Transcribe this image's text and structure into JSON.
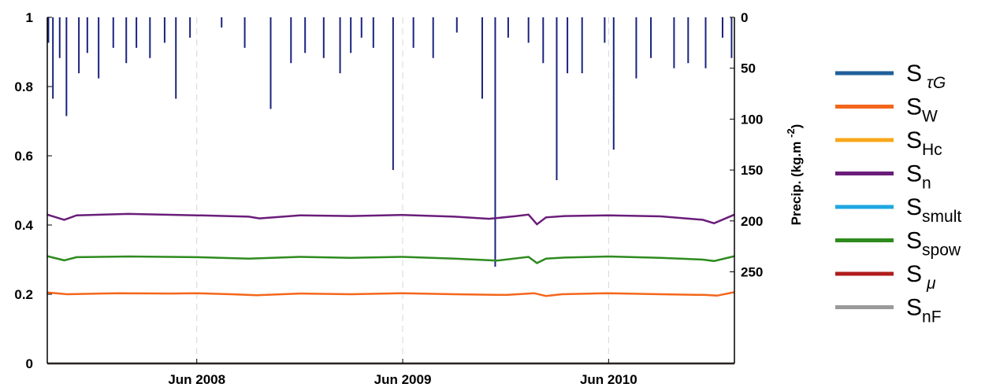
{
  "chart_data": {
    "type": "line",
    "title": "",
    "xlabel": "",
    "ylabel": "",
    "ylabel_right": "Precip. (kg.m -2)",
    "ylabel_right_main": "Precip. (kg.m",
    "ylabel_right_sup": "-2",
    "ylabel_right_close": ")",
    "x_range": [
      "2007-09-10",
      "2011-01-10"
    ],
    "x_tick_dates": [
      "2008-06-01",
      "2009-06-01",
      "2010-06-01"
    ],
    "x_tick_labels": [
      "Jun 2008",
      "Jun 2009",
      "Jun 2010"
    ],
    "ylim": [
      0,
      1
    ],
    "y_ticks": [
      0,
      0.2,
      0.4,
      0.6,
      0.8,
      1
    ],
    "y_tick_labels": [
      "0",
      "0.2",
      "0.4",
      "0.6",
      "0.8",
      "1"
    ],
    "ylim_right_inverted": [
      0,
      340
    ],
    "y_right_ticks": [
      0,
      50,
      100,
      150,
      200,
      250
    ],
    "y_right_tick_labels": [
      "0",
      "50",
      "100",
      "150",
      "200",
      "250"
    ],
    "grid": "vertical dashed at x ticks",
    "legend_position": "right",
    "series": [
      {
        "name": "S τG",
        "main": "S",
        "sub": "τG",
        "sub_italic": true,
        "color": "#1f5f9a",
        "x": [
          "2007-09-10",
          "2011-01-10"
        ],
        "y": [
          0.0,
          0.0
        ]
      },
      {
        "name": "SW",
        "main": "S",
        "sub": "W",
        "sub_italic": false,
        "color": "#f4661b",
        "x": [
          "2007-09-10",
          "2007-10-15",
          "2008-01-15",
          "2008-04-15",
          "2008-06-01",
          "2008-08-01",
          "2008-09-15",
          "2008-12-01",
          "2009-03-01",
          "2009-06-01",
          "2009-09-01",
          "2009-12-01",
          "2010-01-20",
          "2010-02-10",
          "2010-03-10",
          "2010-06-01",
          "2010-09-01",
          "2010-11-20",
          "2010-12-10",
          "2011-01-10"
        ],
        "y": [
          0.205,
          0.2,
          0.203,
          0.202,
          0.203,
          0.2,
          0.197,
          0.202,
          0.2,
          0.203,
          0.2,
          0.198,
          0.203,
          0.195,
          0.2,
          0.203,
          0.2,
          0.198,
          0.196,
          0.206
        ]
      },
      {
        "name": "SHc",
        "main": "S",
        "sub": "Hc",
        "sub_italic": false,
        "color": "#f8a71b",
        "x": [
          "2007-09-10",
          "2011-01-10"
        ],
        "y": [
          0.0,
          0.0
        ]
      },
      {
        "name": "Sn",
        "main": "S",
        "sub": "n",
        "sub_italic": false,
        "color": "#6a1d7a",
        "x": [
          "2007-09-10",
          "2007-10-10",
          "2007-11-01",
          "2008-02-01",
          "2008-06-01",
          "2008-09-01",
          "2008-09-20",
          "2008-12-01",
          "2009-03-01",
          "2009-06-01",
          "2009-09-01",
          "2009-11-01",
          "2009-12-15",
          "2010-01-10",
          "2010-01-25",
          "2010-02-10",
          "2010-03-15",
          "2010-06-01",
          "2010-09-01",
          "2010-11-15",
          "2010-12-05",
          "2011-01-10"
        ],
        "y": [
          0.43,
          0.415,
          0.428,
          0.432,
          0.428,
          0.424,
          0.419,
          0.428,
          0.426,
          0.429,
          0.424,
          0.418,
          0.425,
          0.43,
          0.402,
          0.422,
          0.426,
          0.428,
          0.425,
          0.415,
          0.405,
          0.43
        ]
      },
      {
        "name": "Ssmult",
        "main": "S",
        "sub": "smult",
        "sub_italic": false,
        "color": "#1fa7e0",
        "x": [
          "2007-09-10",
          "2011-01-10"
        ],
        "y": [
          0.0,
          0.0
        ]
      },
      {
        "name": "Sspow",
        "main": "S",
        "sub": "spow",
        "sub_italic": false,
        "color": "#2e8b1e",
        "x": [
          "2007-09-10",
          "2007-10-10",
          "2007-11-01",
          "2008-02-01",
          "2008-06-01",
          "2008-09-01",
          "2008-12-01",
          "2009-03-01",
          "2009-06-01",
          "2009-09-01",
          "2009-11-15",
          "2010-01-10",
          "2010-01-25",
          "2010-02-10",
          "2010-03-15",
          "2010-06-01",
          "2010-09-01",
          "2010-11-15",
          "2010-12-05",
          "2011-01-10"
        ],
        "y": [
          0.31,
          0.298,
          0.307,
          0.309,
          0.307,
          0.303,
          0.308,
          0.305,
          0.308,
          0.303,
          0.297,
          0.308,
          0.29,
          0.303,
          0.306,
          0.309,
          0.305,
          0.3,
          0.296,
          0.31
        ]
      },
      {
        "name": "S μ",
        "main": "S",
        "sub": "μ",
        "sub_italic": true,
        "color": "#b01c1c",
        "x": [
          "2007-09-10",
          "2011-01-10"
        ],
        "y": [
          0.0,
          0.0
        ]
      },
      {
        "name": "SnF",
        "main": "S",
        "sub": "nF",
        "sub_italic": false,
        "color": "#9a9a9a",
        "x": [
          "2007-09-10",
          "2011-01-10"
        ],
        "y": [
          0.0,
          0.0
        ]
      }
    ],
    "precip_series": {
      "color": "#1a237e",
      "x": [
        "2007-09-12",
        "2007-09-20",
        "2007-10-02",
        "2007-10-14",
        "2007-11-05",
        "2007-11-20",
        "2007-12-10",
        "2008-01-05",
        "2008-01-28",
        "2008-02-15",
        "2008-03-10",
        "2008-04-05",
        "2008-04-25",
        "2008-05-20",
        "2008-07-15",
        "2008-08-25",
        "2008-10-10",
        "2008-11-15",
        "2008-12-10",
        "2009-01-12",
        "2009-02-10",
        "2009-03-01",
        "2009-03-20",
        "2009-04-10",
        "2009-05-15",
        "2009-06-20",
        "2009-07-25",
        "2009-09-05",
        "2009-10-20",
        "2009-11-12",
        "2009-12-05",
        "2010-01-10",
        "2010-02-05",
        "2010-03-01",
        "2010-03-20",
        "2010-04-15",
        "2010-05-25",
        "2010-06-10",
        "2010-07-20",
        "2010-08-15",
        "2010-09-25",
        "2010-10-20",
        "2010-11-20",
        "2010-12-20",
        "2011-01-05"
      ],
      "y": [
        25,
        80,
        40,
        97,
        55,
        35,
        60,
        30,
        45,
        30,
        40,
        25,
        80,
        20,
        10,
        30,
        90,
        45,
        35,
        40,
        55,
        35,
        20,
        30,
        150,
        30,
        40,
        15,
        80,
        245,
        20,
        25,
        45,
        160,
        55,
        55,
        25,
        130,
        60,
        40,
        50,
        45,
        50,
        20,
        40
      ]
    }
  }
}
